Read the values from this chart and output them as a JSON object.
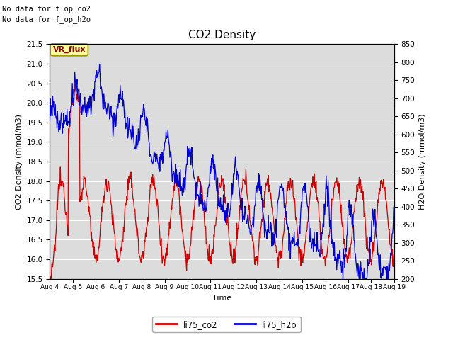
{
  "title": "CO2 Density",
  "xlabel": "Time",
  "ylabel_left": "CO2 Density (mmol/m3)",
  "ylabel_right": "H2O Density (mmol/m3)",
  "ylim_left": [
    15.5,
    21.5
  ],
  "ylim_right": [
    200,
    850
  ],
  "annotation1": "No data for f_op_co2",
  "annotation2": "No data for f_op_h2o",
  "vr_flux_label": "VR_flux",
  "legend_co2": "li75_co2",
  "legend_h2o": "li75_h2o",
  "co2_color": "#cc0000",
  "h2o_color": "#0000cc",
  "bg_color": "#dcdcdc",
  "fig_bg_color": "#ffffff",
  "vr_box_color": "#ffff99",
  "vr_text_color": "#880000",
  "xtick_labels": [
    "Aug 4",
    "Aug 5",
    "Aug 6",
    "Aug 7",
    "Aug 8",
    "Aug 9",
    "Aug 10",
    "Aug 11",
    "Aug 12",
    "Aug 13",
    "Aug 14",
    "Aug 15",
    "Aug 16",
    "Aug 17",
    "Aug 18",
    "Aug 19"
  ],
  "n_points": 720,
  "figwidth": 6.4,
  "figheight": 4.8,
  "dpi": 100
}
